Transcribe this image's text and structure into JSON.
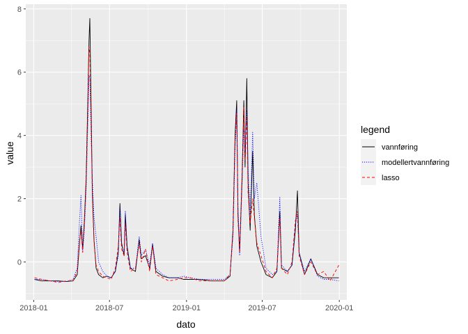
{
  "chart_data": {
    "type": "line",
    "xlabel": "dato",
    "ylabel": "value",
    "x_ticks": [
      "2018-01",
      "2018-07",
      "2019-01",
      "2019-07",
      "2020-01"
    ],
    "y_ticks": [
      0,
      2,
      4,
      6,
      8
    ],
    "xlim": [
      "2017-12-13",
      "2020-01-19"
    ],
    "ylim": [
      -1.2,
      8.15
    ],
    "grid": true,
    "legend": {
      "title": "legend",
      "position": "right"
    },
    "series": [
      {
        "name": "vannføring",
        "color": "#000000",
        "dash": "solid",
        "points": [
          [
            "2018-01-03",
            -0.55
          ],
          [
            "2018-01-20",
            -0.6
          ],
          [
            "2018-02-10",
            -0.6
          ],
          [
            "2018-03-01",
            -0.6
          ],
          [
            "2018-03-20",
            -0.62
          ],
          [
            "2018-04-05",
            -0.6
          ],
          [
            "2018-04-15",
            -0.4
          ],
          [
            "2018-04-20",
            0.5
          ],
          [
            "2018-04-24",
            1.15
          ],
          [
            "2018-04-28",
            0.4
          ],
          [
            "2018-05-02",
            1.3
          ],
          [
            "2018-05-06",
            2.6
          ],
          [
            "2018-05-10",
            5.0
          ],
          [
            "2018-05-13",
            7.0
          ],
          [
            "2018-05-15",
            7.7
          ],
          [
            "2018-05-18",
            5.0
          ],
          [
            "2018-05-21",
            2.2
          ],
          [
            "2018-05-25",
            0.7
          ],
          [
            "2018-05-30",
            -0.2
          ],
          [
            "2018-06-05",
            -0.4
          ],
          [
            "2018-06-15",
            -0.5
          ],
          [
            "2018-06-25",
            -0.45
          ],
          [
            "2018-07-05",
            -0.5
          ],
          [
            "2018-07-15",
            -0.3
          ],
          [
            "2018-07-22",
            0.3
          ],
          [
            "2018-07-26",
            1.85
          ],
          [
            "2018-07-30",
            0.6
          ],
          [
            "2018-08-05",
            0.2
          ],
          [
            "2018-08-08",
            1.5
          ],
          [
            "2018-08-12",
            0.5
          ],
          [
            "2018-08-20",
            -0.2
          ],
          [
            "2018-09-01",
            -0.3
          ],
          [
            "2018-09-10",
            0.7
          ],
          [
            "2018-09-15",
            0.1
          ],
          [
            "2018-09-25",
            0.2
          ],
          [
            "2018-10-05",
            -0.2
          ],
          [
            "2018-10-12",
            0.55
          ],
          [
            "2018-10-20",
            -0.3
          ],
          [
            "2018-11-05",
            -0.45
          ],
          [
            "2018-11-20",
            -0.5
          ],
          [
            "2018-12-10",
            -0.5
          ],
          [
            "2018-12-25",
            -0.55
          ],
          [
            "2019-01-10",
            -0.55
          ],
          [
            "2019-02-01",
            -0.55
          ],
          [
            "2019-03-01",
            -0.6
          ],
          [
            "2019-04-01",
            -0.6
          ],
          [
            "2019-04-15",
            -0.45
          ],
          [
            "2019-04-22",
            1.0
          ],
          [
            "2019-04-27",
            4.0
          ],
          [
            "2019-05-01",
            5.1
          ],
          [
            "2019-05-04",
            1.5
          ],
          [
            "2019-05-08",
            0.3
          ],
          [
            "2019-05-14",
            2.8
          ],
          [
            "2019-05-18",
            5.1
          ],
          [
            "2019-05-21",
            3.0
          ],
          [
            "2019-05-25",
            5.8
          ],
          [
            "2019-05-28",
            2.5
          ],
          [
            "2019-06-02",
            1.0
          ],
          [
            "2019-06-08",
            3.5
          ],
          [
            "2019-06-12",
            1.5
          ],
          [
            "2019-06-18",
            0.5
          ],
          [
            "2019-06-28",
            0.0
          ],
          [
            "2019-07-10",
            -0.4
          ],
          [
            "2019-07-25",
            -0.5
          ],
          [
            "2019-08-05",
            -0.3
          ],
          [
            "2019-08-12",
            1.6
          ],
          [
            "2019-08-16",
            -0.2
          ],
          [
            "2019-08-30",
            -0.3
          ],
          [
            "2019-09-10",
            -0.1
          ],
          [
            "2019-09-18",
            1.0
          ],
          [
            "2019-09-23",
            2.25
          ],
          [
            "2019-09-27",
            0.3
          ],
          [
            "2019-10-10",
            -0.4
          ],
          [
            "2019-10-25",
            0.1
          ],
          [
            "2019-11-10",
            -0.4
          ],
          [
            "2019-11-25",
            -0.5
          ],
          [
            "2019-12-10",
            -0.5
          ],
          [
            "2019-12-31",
            -0.5
          ]
        ]
      },
      {
        "name": "modellertvannføring",
        "color": "#0000ff",
        "dash": "dotted",
        "points": [
          [
            "2018-01-03",
            -0.55
          ],
          [
            "2018-01-20",
            -0.55
          ],
          [
            "2018-02-10",
            -0.6
          ],
          [
            "2018-03-01",
            -0.62
          ],
          [
            "2018-03-20",
            -0.62
          ],
          [
            "2018-04-05",
            -0.55
          ],
          [
            "2018-04-15",
            -0.2
          ],
          [
            "2018-04-20",
            1.2
          ],
          [
            "2018-04-24",
            2.1
          ],
          [
            "2018-04-28",
            0.3
          ],
          [
            "2018-05-02",
            1.0
          ],
          [
            "2018-05-06",
            2.2
          ],
          [
            "2018-05-10",
            4.3
          ],
          [
            "2018-05-13",
            5.9
          ],
          [
            "2018-05-15",
            5.8
          ],
          [
            "2018-05-18",
            4.0
          ],
          [
            "2018-05-21",
            2.6
          ],
          [
            "2018-05-25",
            1.4
          ],
          [
            "2018-05-30",
            0.8
          ],
          [
            "2018-06-05",
            0.0
          ],
          [
            "2018-06-15",
            -0.3
          ],
          [
            "2018-06-25",
            -0.45
          ],
          [
            "2018-07-05",
            -0.5
          ],
          [
            "2018-07-15",
            -0.3
          ],
          [
            "2018-07-22",
            0.2
          ],
          [
            "2018-07-26",
            1.7
          ],
          [
            "2018-07-30",
            0.5
          ],
          [
            "2018-08-05",
            0.3
          ],
          [
            "2018-08-08",
            1.6
          ],
          [
            "2018-08-12",
            0.4
          ],
          [
            "2018-08-20",
            -0.2
          ],
          [
            "2018-09-01",
            -0.2
          ],
          [
            "2018-09-10",
            0.8
          ],
          [
            "2018-09-15",
            0.2
          ],
          [
            "2018-09-25",
            0.4
          ],
          [
            "2018-10-05",
            -0.1
          ],
          [
            "2018-10-12",
            0.6
          ],
          [
            "2018-10-20",
            -0.2
          ],
          [
            "2018-11-05",
            -0.4
          ],
          [
            "2018-11-20",
            -0.5
          ],
          [
            "2018-12-10",
            -0.5
          ],
          [
            "2018-12-25",
            -0.45
          ],
          [
            "2019-01-10",
            -0.5
          ],
          [
            "2019-02-01",
            -0.55
          ],
          [
            "2019-03-01",
            -0.55
          ],
          [
            "2019-04-01",
            -0.55
          ],
          [
            "2019-04-15",
            -0.4
          ],
          [
            "2019-04-22",
            0.8
          ],
          [
            "2019-04-27",
            3.5
          ],
          [
            "2019-05-01",
            4.8
          ],
          [
            "2019-05-04",
            1.8
          ],
          [
            "2019-05-08",
            0.2
          ],
          [
            "2019-05-14",
            2.5
          ],
          [
            "2019-05-18",
            4.2
          ],
          [
            "2019-05-21",
            3.5
          ],
          [
            "2019-05-25",
            4.8
          ],
          [
            "2019-05-28",
            3.0
          ],
          [
            "2019-06-02",
            1.5
          ],
          [
            "2019-06-08",
            4.1
          ],
          [
            "2019-06-12",
            2.0
          ],
          [
            "2019-06-18",
            2.5
          ],
          [
            "2019-06-28",
            0.8
          ],
          [
            "2019-07-10",
            -0.2
          ],
          [
            "2019-07-25",
            -0.4
          ],
          [
            "2019-08-05",
            -0.3
          ],
          [
            "2019-08-12",
            2.05
          ],
          [
            "2019-08-16",
            -0.1
          ],
          [
            "2019-08-30",
            -0.3
          ],
          [
            "2019-09-10",
            -0.1
          ],
          [
            "2019-09-18",
            1.2
          ],
          [
            "2019-09-23",
            1.5
          ],
          [
            "2019-09-27",
            0.3
          ],
          [
            "2019-10-10",
            -0.3
          ],
          [
            "2019-10-25",
            0.1
          ],
          [
            "2019-11-10",
            -0.45
          ],
          [
            "2019-11-25",
            -0.55
          ],
          [
            "2019-12-10",
            -0.55
          ],
          [
            "2019-12-31",
            -0.6
          ]
        ]
      },
      {
        "name": "lasso",
        "color": "#ff0000",
        "dash": "dashed",
        "points": [
          [
            "2018-01-03",
            -0.5
          ],
          [
            "2018-01-20",
            -0.55
          ],
          [
            "2018-02-10",
            -0.6
          ],
          [
            "2018-03-01",
            -0.65
          ],
          [
            "2018-03-20",
            -0.6
          ],
          [
            "2018-04-05",
            -0.6
          ],
          [
            "2018-04-15",
            -0.3
          ],
          [
            "2018-04-20",
            0.6
          ],
          [
            "2018-04-24",
            1.0
          ],
          [
            "2018-04-28",
            0.3
          ],
          [
            "2018-05-02",
            1.2
          ],
          [
            "2018-05-06",
            2.4
          ],
          [
            "2018-05-10",
            4.6
          ],
          [
            "2018-05-13",
            6.8
          ],
          [
            "2018-05-15",
            6.6
          ],
          [
            "2018-05-18",
            4.5
          ],
          [
            "2018-05-21",
            2.0
          ],
          [
            "2018-05-25",
            0.6
          ],
          [
            "2018-05-30",
            -0.1
          ],
          [
            "2018-06-05",
            -0.3
          ],
          [
            "2018-06-15",
            -0.45
          ],
          [
            "2018-06-25",
            -0.5
          ],
          [
            "2018-07-05",
            -0.55
          ],
          [
            "2018-07-15",
            -0.2
          ],
          [
            "2018-07-22",
            0.5
          ],
          [
            "2018-07-26",
            1.4
          ],
          [
            "2018-07-30",
            0.4
          ],
          [
            "2018-08-05",
            0.2
          ],
          [
            "2018-08-08",
            1.2
          ],
          [
            "2018-08-12",
            0.3
          ],
          [
            "2018-08-20",
            -0.3
          ],
          [
            "2018-09-01",
            -0.2
          ],
          [
            "2018-09-10",
            0.6
          ],
          [
            "2018-09-15",
            0.0
          ],
          [
            "2018-09-25",
            0.4
          ],
          [
            "2018-10-05",
            -0.3
          ],
          [
            "2018-10-12",
            0.5
          ],
          [
            "2018-10-20",
            -0.4
          ],
          [
            "2018-11-05",
            -0.5
          ],
          [
            "2018-11-20",
            -0.6
          ],
          [
            "2018-12-10",
            -0.55
          ],
          [
            "2018-12-25",
            -0.5
          ],
          [
            "2019-01-10",
            -0.5
          ],
          [
            "2019-02-01",
            -0.6
          ],
          [
            "2019-03-01",
            -0.6
          ],
          [
            "2019-04-01",
            -0.6
          ],
          [
            "2019-04-15",
            -0.4
          ],
          [
            "2019-04-22",
            0.9
          ],
          [
            "2019-04-27",
            3.8
          ],
          [
            "2019-05-01",
            4.7
          ],
          [
            "2019-05-04",
            1.3
          ],
          [
            "2019-05-08",
            0.3
          ],
          [
            "2019-05-14",
            2.6
          ],
          [
            "2019-05-18",
            4.9
          ],
          [
            "2019-05-21",
            3.2
          ],
          [
            "2019-05-25",
            4.6
          ],
          [
            "2019-05-28",
            2.2
          ],
          [
            "2019-06-02",
            1.2
          ],
          [
            "2019-06-08",
            2.0
          ],
          [
            "2019-06-12",
            1.4
          ],
          [
            "2019-06-18",
            0.6
          ],
          [
            "2019-06-28",
            0.2
          ],
          [
            "2019-07-10",
            -0.3
          ],
          [
            "2019-07-25",
            -0.5
          ],
          [
            "2019-08-05",
            -0.2
          ],
          [
            "2019-08-12",
            1.4
          ],
          [
            "2019-08-16",
            -0.2
          ],
          [
            "2019-08-30",
            -0.4
          ],
          [
            "2019-09-10",
            0.0
          ],
          [
            "2019-09-18",
            1.3
          ],
          [
            "2019-09-23",
            1.6
          ],
          [
            "2019-09-27",
            0.2
          ],
          [
            "2019-10-10",
            -0.4
          ],
          [
            "2019-10-25",
            0.0
          ],
          [
            "2019-11-10",
            -0.4
          ],
          [
            "2019-11-25",
            -0.3
          ],
          [
            "2019-12-10",
            -0.6
          ],
          [
            "2019-12-31",
            -0.1
          ]
        ]
      }
    ]
  }
}
